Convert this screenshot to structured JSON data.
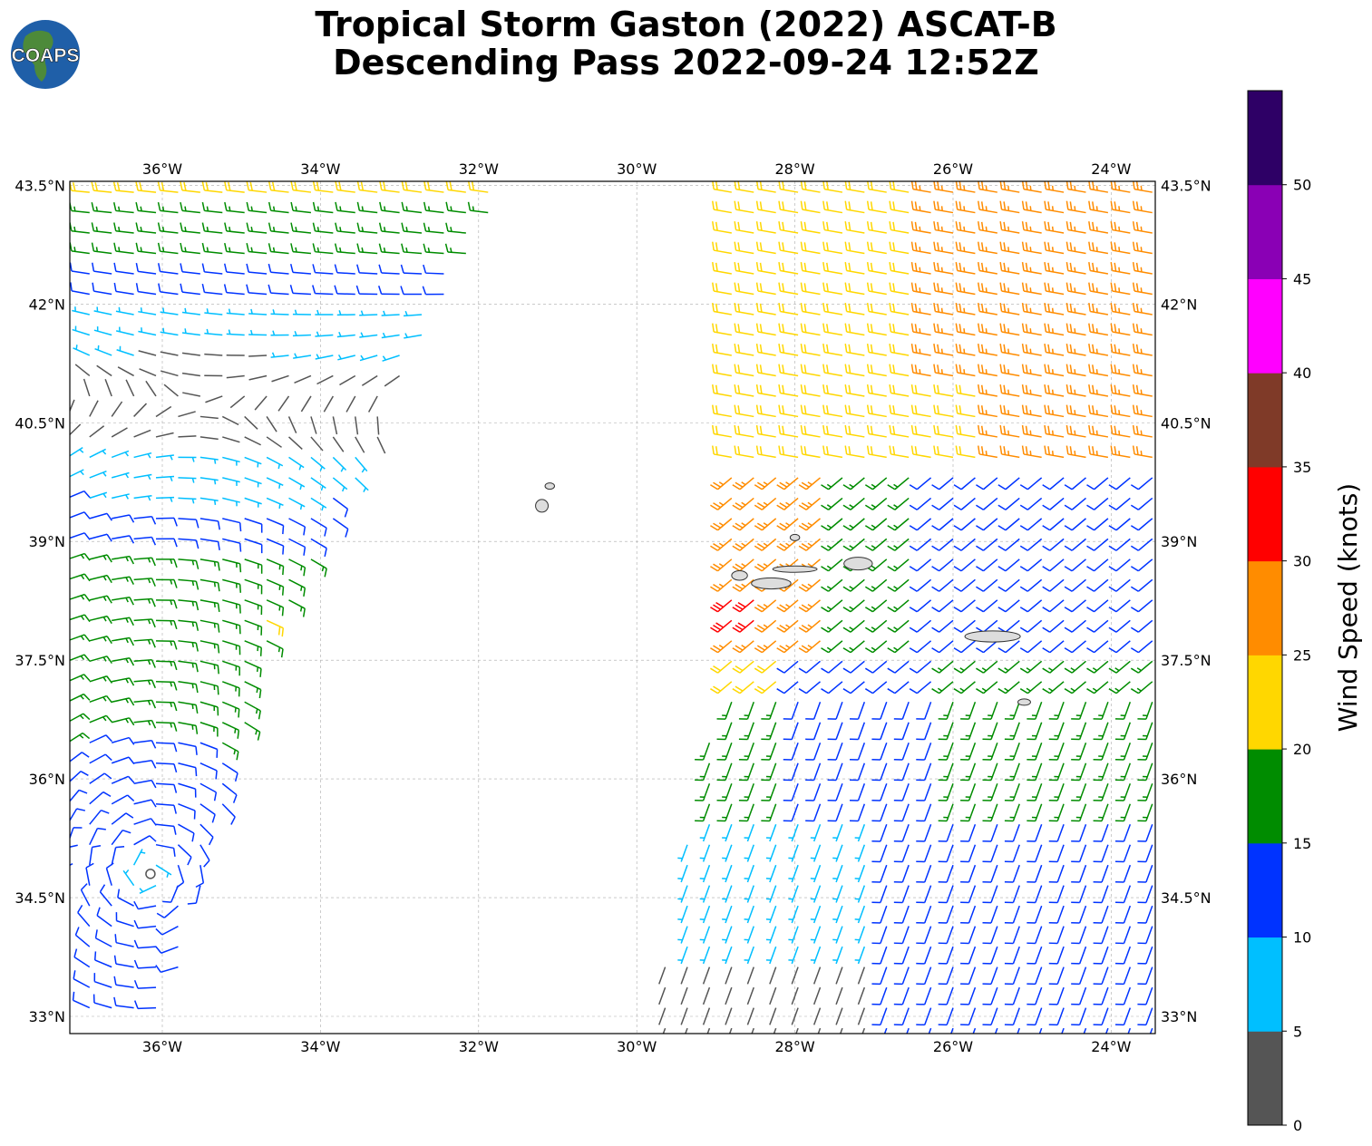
{
  "title": {
    "line1": "Tropical Storm Gaston (2022) ASCAT-B",
    "line2": "Descending Pass 2022-09-24 12:52Z"
  },
  "logo": {
    "text": "COAPS",
    "icon": "globe-icon"
  },
  "map": {
    "lon_range": [
      -37.2,
      -23.4
    ],
    "lat_range": [
      32.8,
      43.6
    ],
    "lon_ticks": [
      -36,
      -34,
      -32,
      -30,
      -28,
      -26,
      -24
    ],
    "lat_ticks": [
      33,
      34.5,
      36,
      37.5,
      39,
      40.5,
      42,
      43.5
    ],
    "lon_tick_labels": [
      "36°W",
      "34°W",
      "32°W",
      "30°W",
      "28°W",
      "26°W",
      "24°W"
    ],
    "lat_tick_labels": [
      "33°N",
      "34.5°N",
      "36°N",
      "37.5°N",
      "39°N",
      "40.5°N",
      "42°N",
      "43.5°N"
    ],
    "grid": true,
    "grid_color": "#aaaaaa",
    "land_color": "#dddddd"
  },
  "colorbar": {
    "label": "Wind Speed (knots)",
    "ticks": [
      "0",
      "5",
      "10",
      "15",
      "20",
      "25",
      "30",
      "35",
      "40",
      "45",
      "50"
    ],
    "bins": [
      {
        "min": 0,
        "max": 5,
        "color": "#555555"
      },
      {
        "min": 5,
        "max": 10,
        "color": "#00bfff"
      },
      {
        "min": 10,
        "max": 15,
        "color": "#0033ff"
      },
      {
        "min": 15,
        "max": 20,
        "color": "#008c00"
      },
      {
        "min": 20,
        "max": 25,
        "color": "#ffd700"
      },
      {
        "min": 25,
        "max": 30,
        "color": "#ff8c00"
      },
      {
        "min": 30,
        "max": 35,
        "color": "#ff0000"
      },
      {
        "min": 35,
        "max": 40,
        "color": "#7f3a28"
      },
      {
        "min": 40,
        "max": 45,
        "color": "#ff00ff"
      },
      {
        "min": 45,
        "max": 50,
        "color": "#8a00b5"
      },
      {
        "min": 50,
        "max": 55,
        "color": "#2e0066"
      }
    ]
  },
  "storm": {
    "name": "Gaston",
    "center": [
      -36.15,
      34.8
    ]
  },
  "islands": [
    {
      "name": "Corvo",
      "lon": -31.1,
      "lat": 39.7,
      "w": 0.06,
      "h": 0.04
    },
    {
      "name": "Flores",
      "lon": -31.2,
      "lat": 39.45,
      "w": 0.08,
      "h": 0.08
    },
    {
      "name": "Graciosa",
      "lon": -28.0,
      "lat": 39.05,
      "w": 0.06,
      "h": 0.04
    },
    {
      "name": "Terceira",
      "lon": -27.2,
      "lat": 38.72,
      "w": 0.18,
      "h": 0.08
    },
    {
      "name": "Sao Jorge",
      "lon": -28.0,
      "lat": 38.65,
      "w": 0.28,
      "h": 0.04
    },
    {
      "name": "Faial",
      "lon": -28.7,
      "lat": 38.57,
      "w": 0.1,
      "h": 0.06
    },
    {
      "name": "Pico",
      "lon": -28.3,
      "lat": 38.47,
      "w": 0.25,
      "h": 0.07
    },
    {
      "name": "Sao Miguel",
      "lon": -25.5,
      "lat": 37.8,
      "w": 0.35,
      "h": 0.07
    },
    {
      "name": "Santa Maria",
      "lon": -25.1,
      "lat": 36.97,
      "w": 0.08,
      "h": 0.04
    }
  ],
  "swaths": [
    {
      "name": "west swath",
      "poly": [
        [
          -37.2,
          43.6
        ],
        [
          -33.1,
          43.6
        ],
        [
          -31.6,
          43.5
        ],
        [
          -34.6,
          37.8
        ],
        [
          -36.0,
          32.9
        ],
        [
          -37.2,
          32.9
        ]
      ]
    },
    {
      "name": "east swath",
      "poly": [
        [
          -28.9,
          43.6
        ],
        [
          -23.4,
          43.6
        ],
        [
          -23.4,
          32.8
        ],
        [
          -29.8,
          32.8
        ],
        [
          -28.8,
          38.2
        ],
        [
          -28.9,
          43.0
        ]
      ]
    }
  ]
}
